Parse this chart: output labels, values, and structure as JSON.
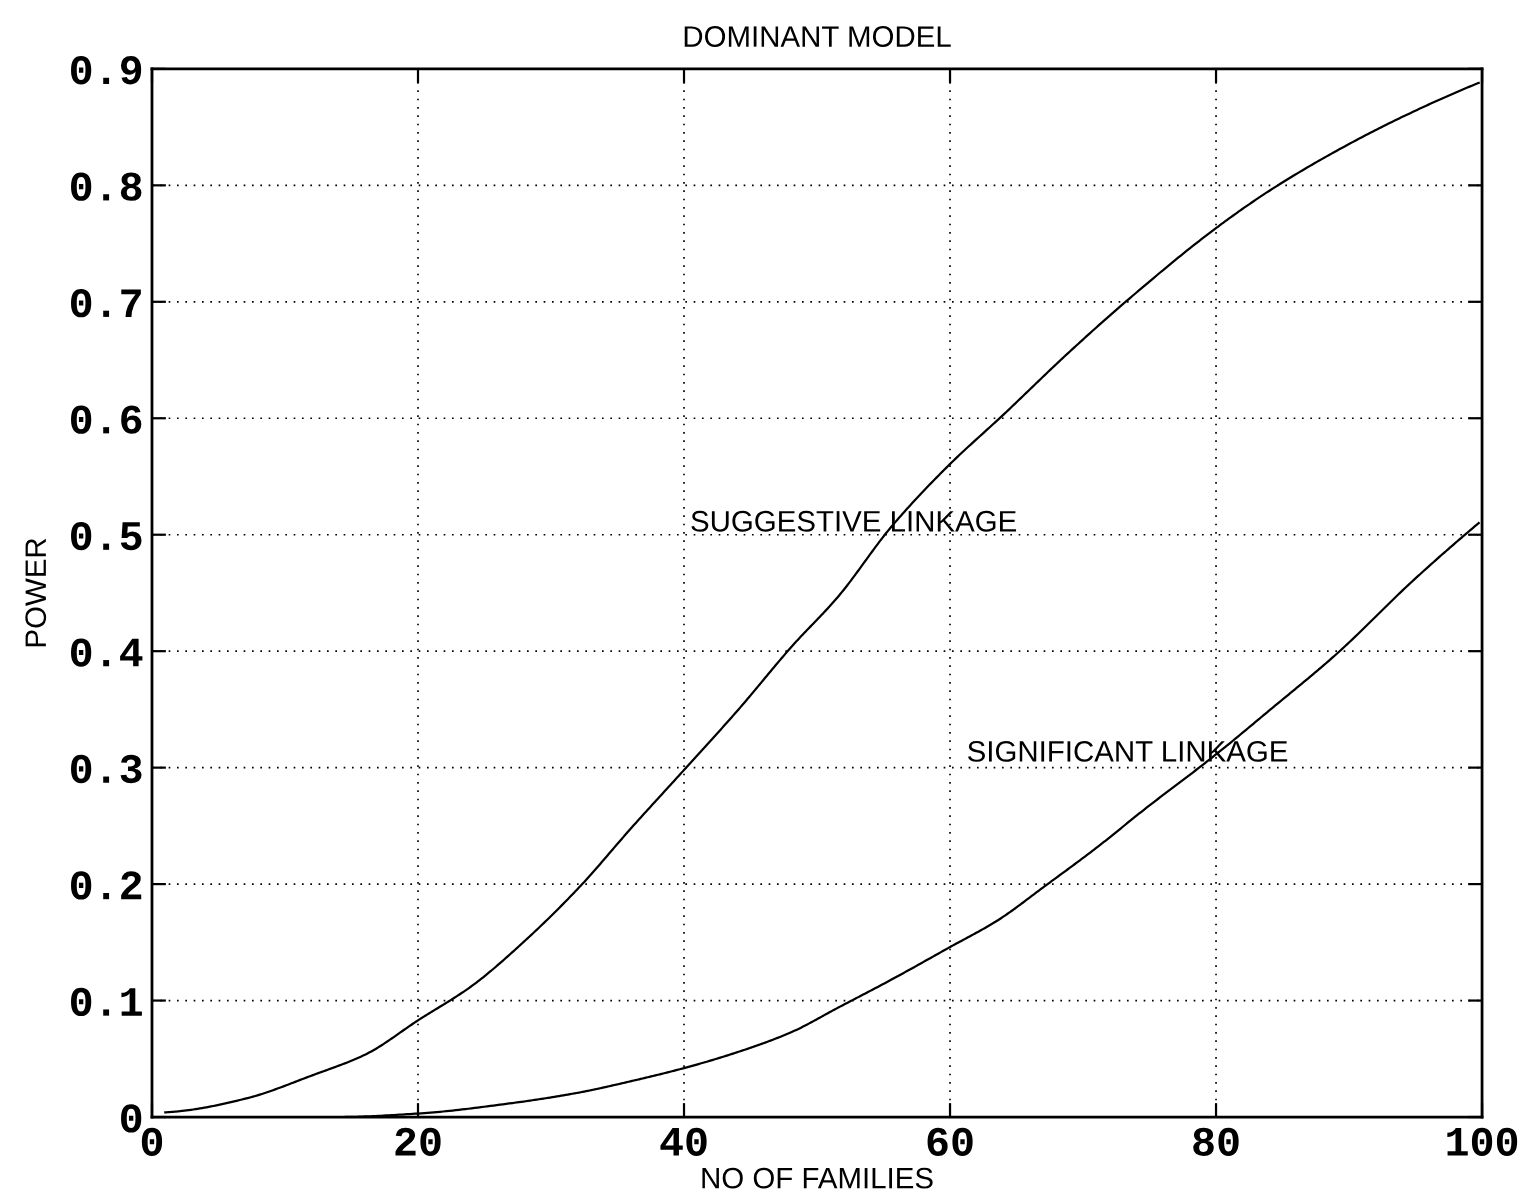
{
  "chart_data": {
    "type": "line",
    "title": "DOMINANT MODEL",
    "xlabel": "NO OF FAMILIES",
    "ylabel": "POWER",
    "series": [
      {
        "x": [
          1,
          2.1,
          7.1,
          12.1,
          16.1,
          20,
          24.1,
          28.1,
          32.1,
          36.1,
          40,
          44.1,
          48.1,
          51.6,
          55.6,
          59.85,
          64.1,
          68.6,
          73.1,
          79.85,
          84.1,
          89.6,
          94.6,
          99.75
        ],
        "values": [
          0.004,
          0.005,
          0.016,
          0.036,
          0.054,
          0.083,
          0.113,
          0.152,
          0.197,
          0.249,
          0.298,
          0.35,
          0.404,
          0.447,
          0.507,
          0.559,
          0.604,
          0.653,
          0.699,
          0.762,
          0.796,
          0.833,
          0.862,
          0.888
        ],
        "color": "#000000"
      },
      {
        "x": [
          1,
          14,
          20,
          27.1,
          32.1,
          36.1,
          40,
          44.1,
          48.1,
          51.6,
          55.6,
          59.85,
          63.6,
          67.1,
          71.1,
          74.6,
          79.85,
          84.1,
          89.1,
          94.85,
          99.75
        ],
        "values": [
          0.0,
          0.0,
          0.003,
          0.012,
          0.021,
          0.031,
          0.042,
          0.056,
          0.073,
          0.094,
          0.118,
          0.145,
          0.169,
          0.198,
          0.232,
          0.264,
          0.31,
          0.35,
          0.398,
          0.461,
          0.51
        ],
        "color": "#000000"
      }
    ],
    "xlim": [
      0,
      100
    ],
    "xticks": [
      0,
      20,
      40,
      60,
      80,
      100
    ],
    "ylim": [
      0,
      0.9
    ],
    "yticks": [
      0,
      0.1,
      0.2,
      0.3,
      0.4,
      0.5,
      0.6,
      0.7,
      0.8,
      0.9
    ],
    "annotations": [
      "SUGGESTIVE LINKAGE",
      "SIGNIFICANT LINKAGE"
    ],
    "grid": true,
    "marker": "none",
    "line_style": "solid"
  }
}
